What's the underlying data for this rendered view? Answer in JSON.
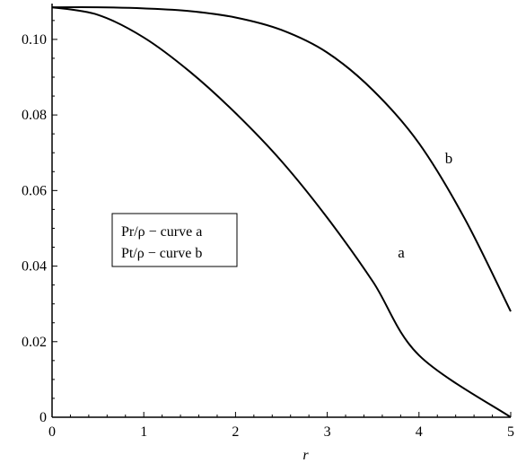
{
  "chart_data": {
    "type": "line",
    "xlabel": "r",
    "ylabel": "",
    "xlim": [
      0,
      5
    ],
    "ylim": [
      0,
      0.109
    ],
    "x_ticks": [
      "0",
      "1",
      "2",
      "3",
      "4",
      "5"
    ],
    "y_ticks": [
      "0",
      "0.02",
      "0.04",
      "0.06",
      "0.08",
      "0.10"
    ],
    "series": [
      {
        "name": "a",
        "x": [
          0,
          0.5,
          1,
          1.5,
          2,
          2.5,
          3,
          3.5,
          4,
          4.5,
          5
        ],
        "y": [
          0.1085,
          0.1065,
          0.1005,
          0.0915,
          0.0805,
          0.0678,
          0.0528,
          0.0358,
          0.0164,
          0.0,
          0.0
        ]
      },
      {
        "name": "b",
        "x": [
          0,
          0.5,
          1,
          1.5,
          2,
          2.5,
          3,
          3.5,
          4,
          4.5,
          5
        ],
        "y": [
          0.1085,
          0.1085,
          0.1082,
          0.1075,
          0.1058,
          0.1025,
          0.0965,
          0.0865,
          0.0725,
          0.0525,
          0.028
        ]
      }
    ],
    "legend": {
      "lines": [
        "Pr/ρ − curve a",
        "Pt/ρ − curve b"
      ],
      "placement": "center-left"
    },
    "grid": false
  }
}
